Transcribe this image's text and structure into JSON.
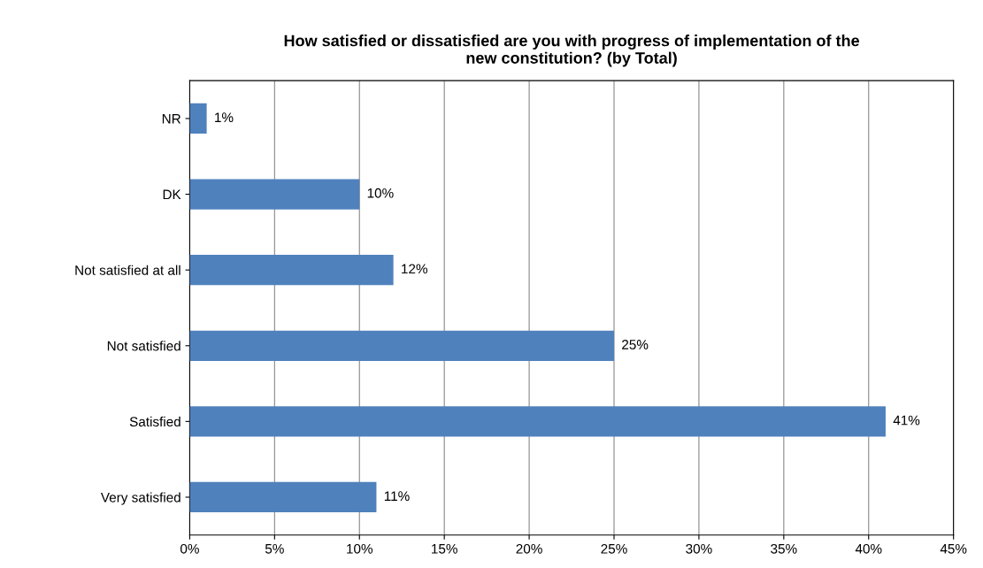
{
  "chart_data": {
    "type": "bar",
    "orientation": "horizontal",
    "title": "How satisfied or dissatisfied are you with progress of implementation of the\nnew constitution? (by Total)",
    "categories": [
      "NR",
      "DK",
      "Not satisfied at all",
      "Not satisfied",
      "Satisfied",
      "Very satisfied"
    ],
    "values": [
      1,
      10,
      12,
      25,
      41,
      11
    ],
    "value_labels": [
      "1%",
      "10%",
      "12%",
      "25%",
      "41%",
      "11%"
    ],
    "color": "#4f81bd",
    "xlim": [
      0,
      45
    ],
    "xticks": [
      {
        "value": 0,
        "label": "0%"
      },
      {
        "value": 5,
        "label": "5%"
      },
      {
        "value": 10,
        "label": "10%"
      },
      {
        "value": 15,
        "label": "15%"
      },
      {
        "value": 20,
        "label": "20%"
      },
      {
        "value": 25,
        "label": "25%"
      },
      {
        "value": 30,
        "label": "30%"
      },
      {
        "value": 35,
        "label": "35%"
      },
      {
        "value": 40,
        "label": "40%"
      },
      {
        "value": 45,
        "label": "45%"
      }
    ],
    "grid": "x",
    "legend": false
  }
}
